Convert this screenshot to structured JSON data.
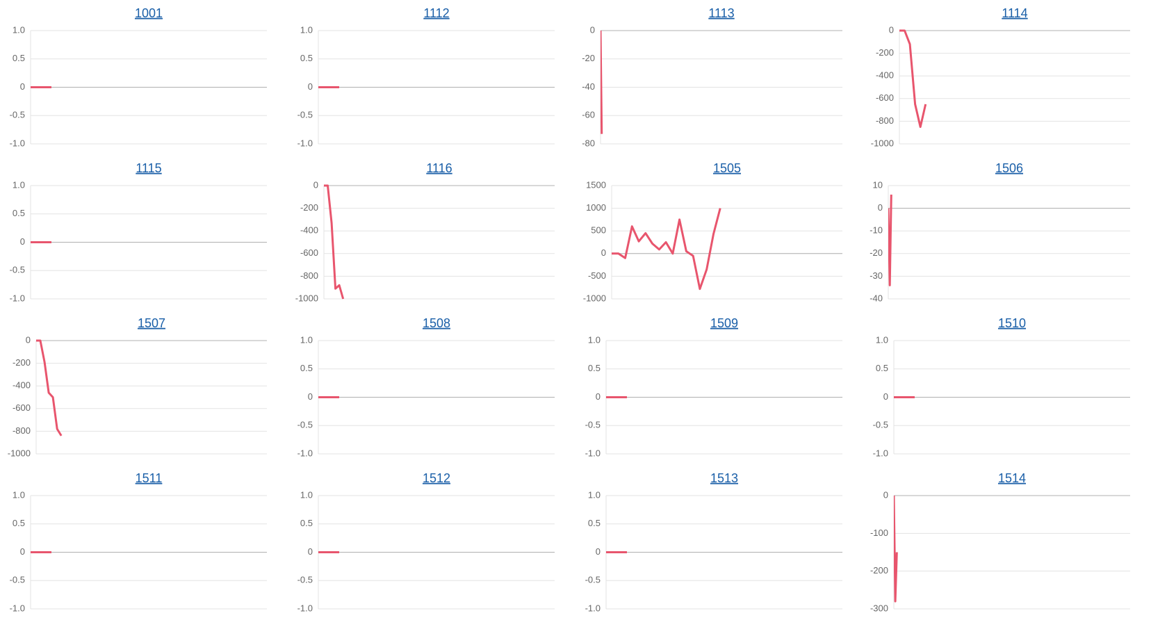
{
  "chart_data": [
    {
      "type": "line",
      "title": "1001",
      "color": "#e8556d",
      "x": [
        0,
        1,
        2,
        3
      ],
      "values": [
        0,
        0,
        0,
        0
      ],
      "xlim": [
        0,
        34
      ],
      "ylim": [
        -1,
        1
      ],
      "yticks": [
        {
          "value": -1,
          "label": "-1.0"
        },
        -0.5,
        0,
        0.5,
        {
          "value": 1,
          "label": "1.0"
        }
      ],
      "grid": true
    },
    {
      "type": "line",
      "title": "1112",
      "color": "#e8556d",
      "x": [
        0,
        1,
        2,
        3
      ],
      "values": [
        0,
        0,
        0,
        0
      ],
      "xlim": [
        0,
        34
      ],
      "ylim": [
        -1,
        1
      ],
      "yticks": [
        {
          "value": -1,
          "label": "-1.0"
        },
        -0.5,
        0,
        0.5,
        {
          "value": 1,
          "label": "1.0"
        }
      ],
      "grid": true
    },
    {
      "type": "line",
      "title": "1113",
      "color": "#e8556d",
      "x": [
        0,
        1
      ],
      "values": [
        0,
        -73
      ],
      "xlim": [
        0,
        200
      ],
      "ylim": [
        -80,
        0
      ],
      "yticks": [
        -80,
        -60,
        -40,
        -20,
        0
      ],
      "grid": true
    },
    {
      "type": "line",
      "title": "1114",
      "color": "#e8556d",
      "x": [
        0,
        1,
        2,
        3,
        4,
        5
      ],
      "values": [
        0,
        0,
        -120,
        -650,
        -850,
        -650
      ],
      "xlim": [
        0,
        44
      ],
      "ylim": [
        -1000,
        0
      ],
      "yticks": [
        -1000,
        -800,
        -600,
        -400,
        -200,
        0
      ],
      "grid": true
    },
    {
      "type": "line",
      "title": "1115",
      "color": "#e8556d",
      "x": [
        0,
        1,
        2,
        3
      ],
      "values": [
        0,
        0,
        0,
        0
      ],
      "xlim": [
        0,
        34
      ],
      "ylim": [
        -1,
        1
      ],
      "yticks": [
        {
          "value": -1,
          "label": "-1.0"
        },
        -0.5,
        0,
        0.5,
        {
          "value": 1,
          "label": "1.0"
        }
      ],
      "grid": true
    },
    {
      "type": "line",
      "title": "1116",
      "color": "#e8556d",
      "x": [
        0,
        1,
        2,
        3,
        4,
        5
      ],
      "values": [
        0,
        0,
        -330,
        -910,
        -880,
        -1000
      ],
      "xlim": [
        0,
        60
      ],
      "ylim": [
        -1000,
        0
      ],
      "yticks": [
        -1000,
        -800,
        -600,
        -400,
        -200,
        0
      ],
      "grid": true
    },
    {
      "type": "line",
      "title": "1505",
      "color": "#e8556d",
      "x": [
        0,
        1,
        2,
        3,
        4,
        5,
        6,
        7,
        8,
        9,
        10,
        11,
        12,
        13,
        14,
        15,
        16
      ],
      "values": [
        0,
        0,
        -100,
        600,
        270,
        450,
        220,
        90,
        250,
        0,
        750,
        50,
        -50,
        -780,
        -350,
        430,
        1000
      ],
      "xlim": [
        0,
        34
      ],
      "ylim": [
        -1000,
        1500
      ],
      "yticks": [
        -1000,
        -500,
        0,
        500,
        1000,
        1500
      ],
      "grid": true
    },
    {
      "type": "line",
      "title": "1506",
      "color": "#e8556d",
      "x": [
        0,
        1,
        2
      ],
      "values": [
        0,
        -34,
        6
      ],
      "xlim": [
        0,
        160
      ],
      "ylim": [
        -40,
        10
      ],
      "yticks": [
        -40,
        -30,
        -20,
        -10,
        0,
        10
      ],
      "grid": true
    },
    {
      "type": "line",
      "title": "1507",
      "color": "#e8556d",
      "x": [
        0,
        1,
        2,
        3,
        4,
        5,
        6
      ],
      "values": [
        0,
        0,
        -190,
        -460,
        -500,
        -780,
        -840
      ],
      "xlim": [
        0,
        55
      ],
      "ylim": [
        -1000,
        0
      ],
      "yticks": [
        -1000,
        -800,
        -600,
        -400,
        -200,
        0
      ],
      "grid": true
    },
    {
      "type": "line",
      "title": "1508",
      "color": "#e8556d",
      "x": [
        0,
        1,
        2,
        3
      ],
      "values": [
        0,
        0,
        0,
        0
      ],
      "xlim": [
        0,
        34
      ],
      "ylim": [
        -1,
        1
      ],
      "yticks": [
        {
          "value": -1,
          "label": "-1.0"
        },
        -0.5,
        0,
        0.5,
        {
          "value": 1,
          "label": "1.0"
        }
      ],
      "grid": true
    },
    {
      "type": "line",
      "title": "1509",
      "color": "#e8556d",
      "x": [
        0,
        1,
        2,
        3
      ],
      "values": [
        0,
        0,
        0,
        0
      ],
      "xlim": [
        0,
        34
      ],
      "ylim": [
        -1,
        1
      ],
      "yticks": [
        {
          "value": -1,
          "label": "-1.0"
        },
        -0.5,
        0,
        0.5,
        {
          "value": 1,
          "label": "1.0"
        }
      ],
      "grid": true
    },
    {
      "type": "line",
      "title": "1510",
      "color": "#e8556d",
      "x": [
        0,
        1,
        2,
        3
      ],
      "values": [
        0,
        0,
        0,
        0
      ],
      "xlim": [
        0,
        34
      ],
      "ylim": [
        -1,
        1
      ],
      "yticks": [
        {
          "value": -1,
          "label": "-1.0"
        },
        -0.5,
        0,
        0.5,
        {
          "value": 1,
          "label": "1.0"
        }
      ],
      "grid": true
    },
    {
      "type": "line",
      "title": "1511",
      "color": "#e8556d",
      "x": [
        0,
        1,
        2,
        3
      ],
      "values": [
        0,
        0,
        0,
        0
      ],
      "xlim": [
        0,
        34
      ],
      "ylim": [
        -1,
        1
      ],
      "yticks": [
        {
          "value": -1,
          "label": "-1.0"
        },
        -0.5,
        0,
        0.5,
        {
          "value": 1,
          "label": "1.0"
        }
      ],
      "grid": true
    },
    {
      "type": "line",
      "title": "1512",
      "color": "#e8556d",
      "x": [
        0,
        1,
        2,
        3
      ],
      "values": [
        0,
        0,
        0,
        0
      ],
      "xlim": [
        0,
        34
      ],
      "ylim": [
        -1,
        1
      ],
      "yticks": [
        {
          "value": -1,
          "label": "-1.0"
        },
        -0.5,
        0,
        0.5,
        {
          "value": 1,
          "label": "1.0"
        }
      ],
      "grid": true
    },
    {
      "type": "line",
      "title": "1513",
      "color": "#e8556d",
      "x": [
        0,
        1,
        2,
        3
      ],
      "values": [
        0,
        0,
        0,
        0
      ],
      "xlim": [
        0,
        34
      ],
      "ylim": [
        -1,
        1
      ],
      "yticks": [
        {
          "value": -1,
          "label": "-1.0"
        },
        -0.5,
        0,
        0.5,
        {
          "value": 1,
          "label": "1.0"
        }
      ],
      "grid": true
    },
    {
      "type": "line",
      "title": "1514",
      "color": "#e8556d",
      "x": [
        0,
        1,
        2
      ],
      "values": [
        0,
        -280,
        -150
      ],
      "xlim": [
        0,
        160
      ],
      "ylim": [
        -300,
        0
      ],
      "yticks": [
        -300,
        -200,
        -100,
        0
      ],
      "grid": true
    }
  ]
}
